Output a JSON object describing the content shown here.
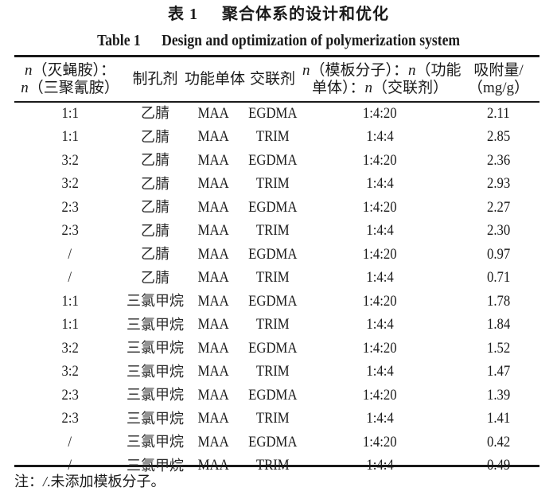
{
  "title": {
    "cn_label": "表 1",
    "cn_text": "聚合体系的设计和优化",
    "en_label": "Table 1",
    "en_text": "Design and optimization of polymerization system"
  },
  "table": {
    "headers": [
      {
        "line1": "n（灭蝇胺）：",
        "line2": "n（三聚氰胺）"
      },
      {
        "line1": "制孔剂"
      },
      {
        "line1": "功能单体"
      },
      {
        "line1": "交联剂"
      },
      {
        "line1": "n（模板分子）：n（功能",
        "line2": "单体）：n（交联剂）"
      },
      {
        "line1": "吸附量/",
        "line2": "（mg/g）"
      }
    ],
    "header_parts": {
      "col1_line1_var": "n",
      "col1_line1_text": "（灭蝇胺）：",
      "col1_line2_var": "n",
      "col1_line2_text": "（三聚氰胺）",
      "col2": "制孔剂",
      "col3": "功能单体",
      "col4": "交联剂",
      "col5_line1_var1": "n",
      "col5_line1_text1": "（模板分子）：",
      "col5_line1_var2": "n",
      "col5_line1_text2": "（功能",
      "col5_line2_text1": "单体）：",
      "col5_line2_var": "n",
      "col5_line2_text2": "（交联剂）",
      "col6_line1": "吸附量/",
      "col6_line2": "（mg/g）"
    },
    "rows": [
      {
        "ratio": "1:1",
        "porogen": "乙腈",
        "monomer": "MAA",
        "crosslinker": "EGDMA",
        "molar": "1:4:20",
        "adsorption": "2.11"
      },
      {
        "ratio": "1:1",
        "porogen": "乙腈",
        "monomer": "MAA",
        "crosslinker": "TRIM",
        "molar": "1:4:4",
        "adsorption": "2.85"
      },
      {
        "ratio": "3:2",
        "porogen": "乙腈",
        "monomer": "MAA",
        "crosslinker": "EGDMA",
        "molar": "1:4:20",
        "adsorption": "2.36"
      },
      {
        "ratio": "3:2",
        "porogen": "乙腈",
        "monomer": "MAA",
        "crosslinker": "TRIM",
        "molar": "1:4:4",
        "adsorption": "2.93"
      },
      {
        "ratio": "2:3",
        "porogen": "乙腈",
        "monomer": "MAA",
        "crosslinker": "EGDMA",
        "molar": "1:4:20",
        "adsorption": "2.27"
      },
      {
        "ratio": "2:3",
        "porogen": "乙腈",
        "monomer": "MAA",
        "crosslinker": "TRIM",
        "molar": "1:4:4",
        "adsorption": "2.30"
      },
      {
        "ratio": "/",
        "porogen": "乙腈",
        "monomer": "MAA",
        "crosslinker": "EGDMA",
        "molar": "1:4:20",
        "adsorption": "0.97"
      },
      {
        "ratio": "/",
        "porogen": "乙腈",
        "monomer": "MAA",
        "crosslinker": "TRIM",
        "molar": "1:4:4",
        "adsorption": "0.71"
      },
      {
        "ratio": "1:1",
        "porogen": "三氯甲烷",
        "monomer": "MAA",
        "crosslinker": "EGDMA",
        "molar": "1:4:20",
        "adsorption": "1.78"
      },
      {
        "ratio": "1:1",
        "porogen": "三氯甲烷",
        "monomer": "MAA",
        "crosslinker": "TRIM",
        "molar": "1:4:4",
        "adsorption": "1.84"
      },
      {
        "ratio": "3:2",
        "porogen": "三氯甲烷",
        "monomer": "MAA",
        "crosslinker": "EGDMA",
        "molar": "1:4:20",
        "adsorption": "1.52"
      },
      {
        "ratio": "3:2",
        "porogen": "三氯甲烷",
        "monomer": "MAA",
        "crosslinker": "TRIM",
        "molar": "1:4:4",
        "adsorption": "1.47"
      },
      {
        "ratio": "2:3",
        "porogen": "三氯甲烷",
        "monomer": "MAA",
        "crosslinker": "EGDMA",
        "molar": "1:4:20",
        "adsorption": "1.39"
      },
      {
        "ratio": "2:3",
        "porogen": "三氯甲烷",
        "monomer": "MAA",
        "crosslinker": "TRIM",
        "molar": "1:4:4",
        "adsorption": "1.41"
      },
      {
        "ratio": "/",
        "porogen": "三氯甲烷",
        "monomer": "MAA",
        "crosslinker": "EGDMA",
        "molar": "1:4:20",
        "adsorption": "0.42"
      },
      {
        "ratio": "/",
        "porogen": "三氯甲烷",
        "monomer": "MAA",
        "crosslinker": "TRIM",
        "molar": "1:4:4",
        "adsorption": "0.49"
      }
    ]
  },
  "note": {
    "prefix": "注：",
    "symbol": "/",
    "text": ".未添加模板分子。"
  }
}
